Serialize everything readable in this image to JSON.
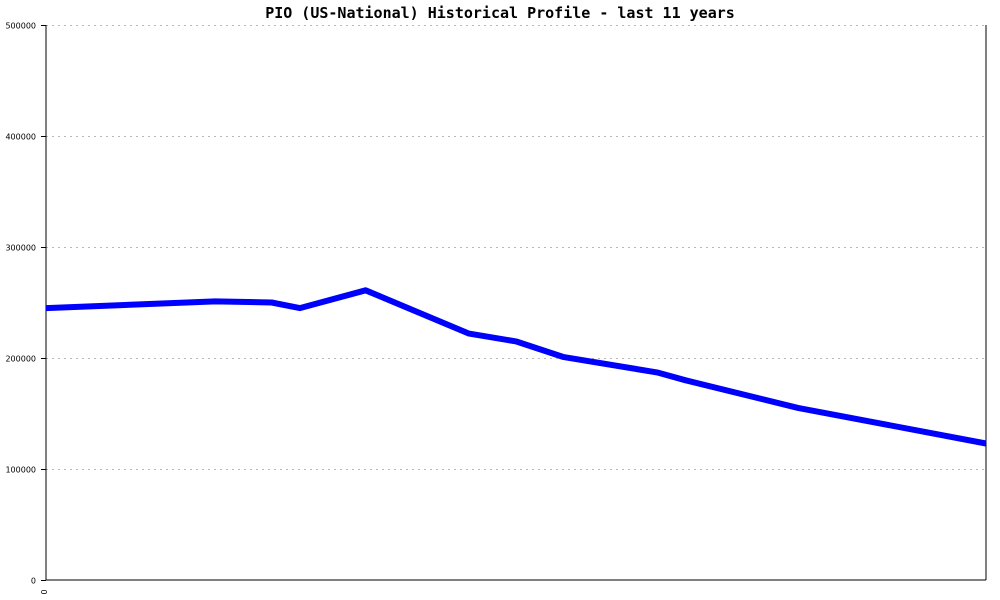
{
  "chart_data": {
    "type": "line",
    "title": "PIO (US-National) Historical Profile - last 11 years",
    "xlabel": "",
    "ylabel": "",
    "ylim": [
      0,
      500000
    ],
    "yticks": [
      0,
      100000,
      200000,
      300000,
      400000,
      500000
    ],
    "ytick_labels": [
      "0",
      "100000",
      "200000",
      "300000",
      "400000",
      "500000"
    ],
    "xtick_labels": [
      "0"
    ],
    "grid": true,
    "series": [
      {
        "color": "#0000ff",
        "x": [
          0,
          0.18,
          0.24,
          0.27,
          0.34,
          0.45,
          0.5,
          0.55,
          0.65,
          0.68,
          0.8,
          1
        ],
        "values": [
          245000,
          251000,
          250000,
          245000,
          261000,
          222000,
          215000,
          201000,
          187000,
          180000,
          155000,
          123000
        ]
      }
    ]
  }
}
